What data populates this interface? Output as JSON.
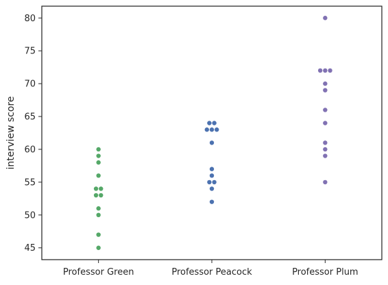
{
  "chart_data": {
    "type": "scatter",
    "style": "swarmplot",
    "xlabel": "",
    "ylabel": "interview score",
    "ylim": [
      43.2,
      81.8
    ],
    "yticks": [
      45,
      50,
      55,
      60,
      65,
      70,
      75,
      80
    ],
    "grid": false,
    "categories": [
      "Professor Green",
      "Professor Peacock",
      "Professor Plum"
    ],
    "series": [
      {
        "category": "Professor Green",
        "color": "#55a868",
        "values": [
          45,
          47,
          50,
          51,
          53,
          53,
          54,
          54,
          56,
          58,
          59,
          60
        ]
      },
      {
        "category": "Professor Peacock",
        "color": "#4c72b0",
        "values": [
          52,
          54,
          55,
          55,
          56,
          57,
          61,
          63,
          63,
          63,
          64,
          64
        ]
      },
      {
        "category": "Professor Plum",
        "color": "#8172b3",
        "values": [
          55,
          59,
          60,
          61,
          64,
          66,
          69,
          70,
          72,
          72,
          72,
          80
        ]
      }
    ]
  }
}
